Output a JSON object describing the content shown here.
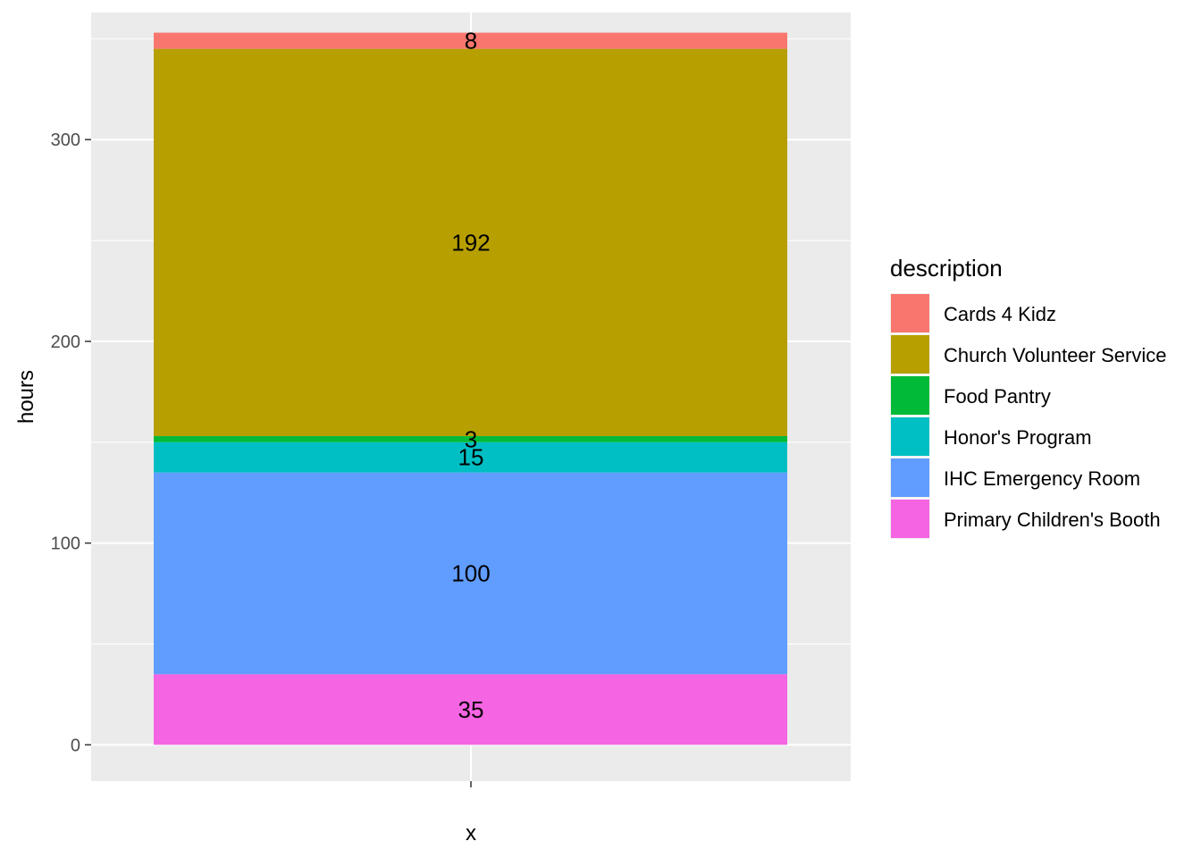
{
  "chart_data": {
    "type": "bar",
    "stacked": true,
    "categories": [
      ""
    ],
    "xlabel": "x",
    "ylabel": "hours",
    "ylim": [
      -18,
      363
    ],
    "y_ticks": [
      0,
      100,
      200,
      300
    ],
    "grid": true,
    "legend_title": "description",
    "legend_position": "right",
    "series": [
      {
        "name": "Cards 4 Kidz",
        "values": [
          8
        ],
        "color": "#F8766D"
      },
      {
        "name": "Church Volunteer Service",
        "values": [
          192
        ],
        "color": "#B79F00"
      },
      {
        "name": "Food Pantry",
        "values": [
          3
        ],
        "color": "#00BA38"
      },
      {
        "name": "Honor's Program",
        "values": [
          15
        ],
        "color": "#00BFC4"
      },
      {
        "name": "IHC Emergency Room",
        "values": [
          100
        ],
        "color": "#619CFF"
      },
      {
        "name": "Primary Children's Booth",
        "values": [
          35
        ],
        "color": "#F564E3"
      }
    ]
  }
}
